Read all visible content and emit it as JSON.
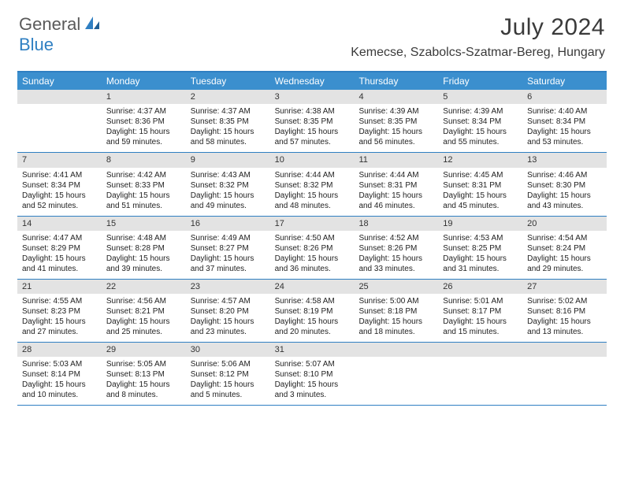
{
  "brand": {
    "part1": "General",
    "part2": "Blue"
  },
  "title": "July 2024",
  "location": "Kemecse, Szabolcs-Szatmar-Bereg, Hungary",
  "colors": {
    "header_bar": "#3b8fce",
    "accent": "#2f7fc2",
    "daynum_bg": "#e3e3e3",
    "text": "#222222",
    "title_text": "#3a3a3a"
  },
  "daysOfWeek": [
    "Sunday",
    "Monday",
    "Tuesday",
    "Wednesday",
    "Thursday",
    "Friday",
    "Saturday"
  ],
  "weeks": [
    [
      null,
      {
        "n": "1",
        "sunrise": "Sunrise: 4:37 AM",
        "sunset": "Sunset: 8:36 PM",
        "daylight": "Daylight: 15 hours and 59 minutes."
      },
      {
        "n": "2",
        "sunrise": "Sunrise: 4:37 AM",
        "sunset": "Sunset: 8:35 PM",
        "daylight": "Daylight: 15 hours and 58 minutes."
      },
      {
        "n": "3",
        "sunrise": "Sunrise: 4:38 AM",
        "sunset": "Sunset: 8:35 PM",
        "daylight": "Daylight: 15 hours and 57 minutes."
      },
      {
        "n": "4",
        "sunrise": "Sunrise: 4:39 AM",
        "sunset": "Sunset: 8:35 PM",
        "daylight": "Daylight: 15 hours and 56 minutes."
      },
      {
        "n": "5",
        "sunrise": "Sunrise: 4:39 AM",
        "sunset": "Sunset: 8:34 PM",
        "daylight": "Daylight: 15 hours and 55 minutes."
      },
      {
        "n": "6",
        "sunrise": "Sunrise: 4:40 AM",
        "sunset": "Sunset: 8:34 PM",
        "daylight": "Daylight: 15 hours and 53 minutes."
      }
    ],
    [
      {
        "n": "7",
        "sunrise": "Sunrise: 4:41 AM",
        "sunset": "Sunset: 8:34 PM",
        "daylight": "Daylight: 15 hours and 52 minutes."
      },
      {
        "n": "8",
        "sunrise": "Sunrise: 4:42 AM",
        "sunset": "Sunset: 8:33 PM",
        "daylight": "Daylight: 15 hours and 51 minutes."
      },
      {
        "n": "9",
        "sunrise": "Sunrise: 4:43 AM",
        "sunset": "Sunset: 8:32 PM",
        "daylight": "Daylight: 15 hours and 49 minutes."
      },
      {
        "n": "10",
        "sunrise": "Sunrise: 4:44 AM",
        "sunset": "Sunset: 8:32 PM",
        "daylight": "Daylight: 15 hours and 48 minutes."
      },
      {
        "n": "11",
        "sunrise": "Sunrise: 4:44 AM",
        "sunset": "Sunset: 8:31 PM",
        "daylight": "Daylight: 15 hours and 46 minutes."
      },
      {
        "n": "12",
        "sunrise": "Sunrise: 4:45 AM",
        "sunset": "Sunset: 8:31 PM",
        "daylight": "Daylight: 15 hours and 45 minutes."
      },
      {
        "n": "13",
        "sunrise": "Sunrise: 4:46 AM",
        "sunset": "Sunset: 8:30 PM",
        "daylight": "Daylight: 15 hours and 43 minutes."
      }
    ],
    [
      {
        "n": "14",
        "sunrise": "Sunrise: 4:47 AM",
        "sunset": "Sunset: 8:29 PM",
        "daylight": "Daylight: 15 hours and 41 minutes."
      },
      {
        "n": "15",
        "sunrise": "Sunrise: 4:48 AM",
        "sunset": "Sunset: 8:28 PM",
        "daylight": "Daylight: 15 hours and 39 minutes."
      },
      {
        "n": "16",
        "sunrise": "Sunrise: 4:49 AM",
        "sunset": "Sunset: 8:27 PM",
        "daylight": "Daylight: 15 hours and 37 minutes."
      },
      {
        "n": "17",
        "sunrise": "Sunrise: 4:50 AM",
        "sunset": "Sunset: 8:26 PM",
        "daylight": "Daylight: 15 hours and 36 minutes."
      },
      {
        "n": "18",
        "sunrise": "Sunrise: 4:52 AM",
        "sunset": "Sunset: 8:26 PM",
        "daylight": "Daylight: 15 hours and 33 minutes."
      },
      {
        "n": "19",
        "sunrise": "Sunrise: 4:53 AM",
        "sunset": "Sunset: 8:25 PM",
        "daylight": "Daylight: 15 hours and 31 minutes."
      },
      {
        "n": "20",
        "sunrise": "Sunrise: 4:54 AM",
        "sunset": "Sunset: 8:24 PM",
        "daylight": "Daylight: 15 hours and 29 minutes."
      }
    ],
    [
      {
        "n": "21",
        "sunrise": "Sunrise: 4:55 AM",
        "sunset": "Sunset: 8:23 PM",
        "daylight": "Daylight: 15 hours and 27 minutes."
      },
      {
        "n": "22",
        "sunrise": "Sunrise: 4:56 AM",
        "sunset": "Sunset: 8:21 PM",
        "daylight": "Daylight: 15 hours and 25 minutes."
      },
      {
        "n": "23",
        "sunrise": "Sunrise: 4:57 AM",
        "sunset": "Sunset: 8:20 PM",
        "daylight": "Daylight: 15 hours and 23 minutes."
      },
      {
        "n": "24",
        "sunrise": "Sunrise: 4:58 AM",
        "sunset": "Sunset: 8:19 PM",
        "daylight": "Daylight: 15 hours and 20 minutes."
      },
      {
        "n": "25",
        "sunrise": "Sunrise: 5:00 AM",
        "sunset": "Sunset: 8:18 PM",
        "daylight": "Daylight: 15 hours and 18 minutes."
      },
      {
        "n": "26",
        "sunrise": "Sunrise: 5:01 AM",
        "sunset": "Sunset: 8:17 PM",
        "daylight": "Daylight: 15 hours and 15 minutes."
      },
      {
        "n": "27",
        "sunrise": "Sunrise: 5:02 AM",
        "sunset": "Sunset: 8:16 PM",
        "daylight": "Daylight: 15 hours and 13 minutes."
      }
    ],
    [
      {
        "n": "28",
        "sunrise": "Sunrise: 5:03 AM",
        "sunset": "Sunset: 8:14 PM",
        "daylight": "Daylight: 15 hours and 10 minutes."
      },
      {
        "n": "29",
        "sunrise": "Sunrise: 5:05 AM",
        "sunset": "Sunset: 8:13 PM",
        "daylight": "Daylight: 15 hours and 8 minutes."
      },
      {
        "n": "30",
        "sunrise": "Sunrise: 5:06 AM",
        "sunset": "Sunset: 8:12 PM",
        "daylight": "Daylight: 15 hours and 5 minutes."
      },
      {
        "n": "31",
        "sunrise": "Sunrise: 5:07 AM",
        "sunset": "Sunset: 8:10 PM",
        "daylight": "Daylight: 15 hours and 3 minutes."
      },
      null,
      null,
      null
    ]
  ]
}
